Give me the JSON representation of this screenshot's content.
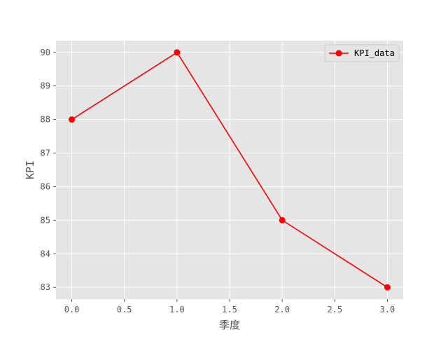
{
  "chart_data": {
    "type": "line",
    "title": "",
    "xlabel": "季度",
    "ylabel": "KPI",
    "x": [
      0,
      1,
      2,
      3
    ],
    "series": [
      {
        "name": "KPI_data",
        "values": [
          88,
          90,
          85,
          83
        ],
        "color": "#ff0000",
        "marker": "circle"
      }
    ],
    "xlim": [
      -0.15,
      3.15
    ],
    "ylim": [
      82.65,
      90.35
    ],
    "xticks": [
      0.0,
      0.5,
      1.0,
      1.5,
      2.0,
      2.5,
      3.0
    ],
    "xtick_labels": [
      "0.0",
      "0.5",
      "1.0",
      "1.5",
      "2.0",
      "2.5",
      "3.0"
    ],
    "yticks": [
      83,
      84,
      85,
      86,
      87,
      88,
      89,
      90
    ],
    "ytick_labels": [
      "83",
      "84",
      "85",
      "86",
      "87",
      "88",
      "89",
      "90"
    ],
    "grid": true,
    "legend_position": "top-right",
    "style": "ggplot",
    "plot_background": "#e5e5e5",
    "grid_color": "#ffffff"
  }
}
